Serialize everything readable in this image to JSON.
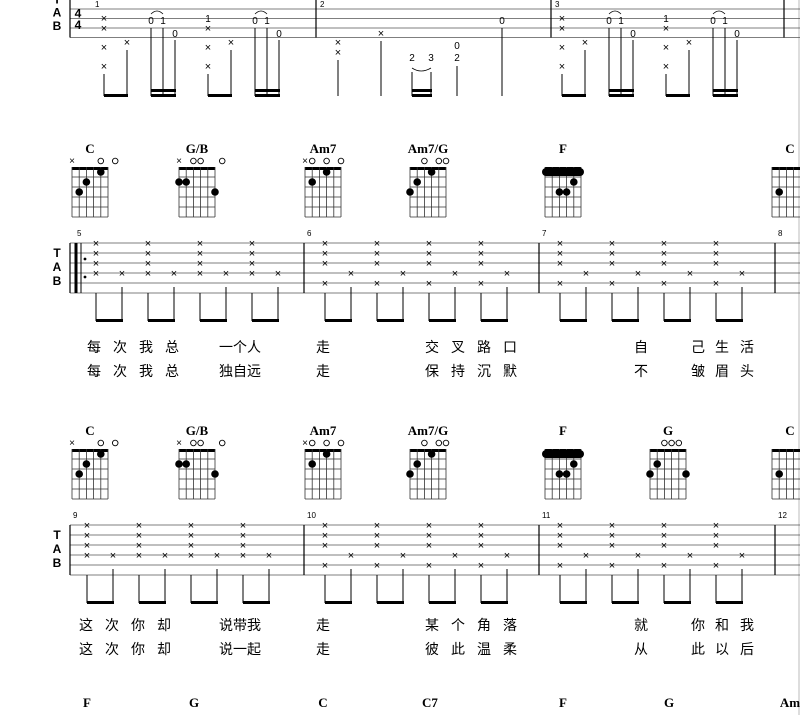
{
  "clef": {
    "t": "T",
    "a": "A",
    "b": "B"
  },
  "time_signature": {
    "top": "4",
    "bottom": "4"
  },
  "systems": [
    {
      "id": "s0",
      "measures": [
        {
          "num": "1"
        },
        {
          "num": "2"
        },
        {
          "num": "3"
        }
      ],
      "tab_marks": [
        {
          "m": 0,
          "s": 1,
          "t": "X"
        },
        {
          "m": 0,
          "s": 2,
          "t": "X"
        },
        {
          "m": 0,
          "s": 4,
          "t": "X"
        },
        {
          "m": 0,
          "s": 3,
          "t": "X"
        },
        {
          "m": 0,
          "s": 1,
          "t": "0"
        },
        {
          "m": 0,
          "s": 1,
          "t": "1"
        },
        {
          "m": 0,
          "s": 2,
          "t": "0"
        }
      ],
      "fret_texts": [
        "1",
        "0",
        "1",
        "0",
        "0",
        "1",
        "0",
        "1",
        "0",
        "0",
        "0",
        "2",
        "3",
        "0",
        "2",
        "1",
        "0",
        "1",
        "0",
        "1",
        "0",
        "1",
        "0"
      ]
    },
    {
      "id": "s1",
      "chords": [
        {
          "name": "C",
          "opens": "× ○ ○"
        },
        {
          "name": "G/B",
          "opens": "× ○○ ○"
        },
        {
          "name": "Am7",
          "opens": "×○ ○ ○"
        },
        {
          "name": "Am7/G",
          "opens": "○ ○ ○"
        },
        {
          "name": "F",
          "opens": ""
        },
        {
          "name": "C",
          "opens": ""
        }
      ],
      "measures": [
        {
          "num": "5"
        },
        {
          "num": "6"
        },
        {
          "num": "7"
        },
        {
          "num": "8"
        }
      ],
      "lyrics_1": [
        "每",
        "次",
        "我",
        "总",
        "一个人",
        "走",
        "交",
        "叉",
        "路",
        "口",
        "自",
        "己",
        "生",
        "活"
      ],
      "lyrics_2": [
        "每",
        "次",
        "我",
        "总",
        "独自远",
        "走",
        "保",
        "持",
        "沉",
        "默",
        "不",
        "皱",
        "眉",
        "头"
      ]
    },
    {
      "id": "s2",
      "chords": [
        {
          "name": "C"
        },
        {
          "name": "G/B"
        },
        {
          "name": "Am7"
        },
        {
          "name": "Am7/G"
        },
        {
          "name": "F"
        },
        {
          "name": "G"
        },
        {
          "name": "C"
        }
      ],
      "measures": [
        {
          "num": "9"
        },
        {
          "num": "10"
        },
        {
          "num": "11"
        },
        {
          "num": "12"
        }
      ],
      "lyrics_1": [
        "这",
        "次",
        "你",
        "却",
        "说带我",
        "走",
        "某",
        "个",
        "角",
        "落",
        "就",
        "你",
        "和",
        "我"
      ],
      "lyrics_2": [
        "这",
        "次",
        "你",
        "却",
        "说一起",
        "走",
        "彼",
        "此",
        "温",
        "柔",
        "从",
        "此",
        "以",
        "后"
      ]
    },
    {
      "id": "s3",
      "chords": [
        {
          "name": "F"
        },
        {
          "name": "G"
        },
        {
          "name": "C"
        },
        {
          "name": "C7"
        },
        {
          "name": "F"
        },
        {
          "name": "G"
        },
        {
          "name": "Am"
        }
      ]
    }
  ]
}
